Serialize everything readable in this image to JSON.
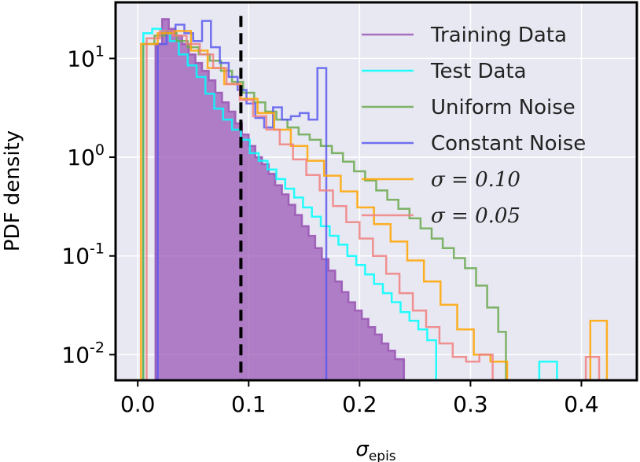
{
  "chart_data": {
    "type": "histogram",
    "xlabel": "σ",
    "xlabel_sub": "epis",
    "ylabel": "PDF density",
    "xlim": [
      -0.02,
      0.45
    ],
    "ylim": [
      0.0055,
      37
    ],
    "yscale": "log",
    "xticks": [
      0.0,
      0.1,
      0.2,
      0.3,
      0.4
    ],
    "xtick_labels": [
      "0.0",
      "0.1",
      "0.2",
      "0.3",
      "0.4"
    ],
    "yticks": [
      0.01,
      0.1,
      1,
      10
    ],
    "ytick_labels": [
      {
        "base": "10",
        "exp": "-2"
      },
      {
        "base": "10",
        "exp": "-1"
      },
      {
        "base": "10",
        "exp": "0"
      },
      {
        "base": "10",
        "exp": "1"
      }
    ],
    "background_color": "#e8e8f2",
    "grid": true,
    "legend_position": "top-right",
    "threshold_line": {
      "x": 0.093,
      "style": "dashed",
      "color": "#000000"
    },
    "series": [
      {
        "name": "Training Data",
        "color": "#9b59b6",
        "fill": true,
        "edges": [
          0.016,
          0.022,
          0.028,
          0.034,
          0.04,
          0.046,
          0.052,
          0.058,
          0.064,
          0.07,
          0.076,
          0.082,
          0.088,
          0.094,
          0.1,
          0.106,
          0.112,
          0.118,
          0.124,
          0.13,
          0.136,
          0.142,
          0.148,
          0.154,
          0.16,
          0.166,
          0.172,
          0.178,
          0.184,
          0.19,
          0.196,
          0.202,
          0.208,
          0.214,
          0.22,
          0.226,
          0.232,
          0.24
        ],
        "values": [
          14,
          25,
          20,
          17,
          14,
          11,
          9,
          7.5,
          6.0,
          4.5,
          3.6,
          2.9,
          2.2,
          1.7,
          1.3,
          1.0,
          0.85,
          0.68,
          0.52,
          0.42,
          0.33,
          0.26,
          0.2,
          0.16,
          0.12,
          0.093,
          0.071,
          0.055,
          0.043,
          0.034,
          0.028,
          0.023,
          0.019,
          0.016,
          0.013,
          0.011,
          0.009
        ]
      },
      {
        "name": "Test Data",
        "color": "#00ffff",
        "fill": false,
        "edges": [
          0.005,
          0.013,
          0.021,
          0.029,
          0.037,
          0.045,
          0.053,
          0.061,
          0.069,
          0.077,
          0.085,
          0.093,
          0.101,
          0.109,
          0.117,
          0.125,
          0.133,
          0.141,
          0.149,
          0.157,
          0.165,
          0.173,
          0.181,
          0.189,
          0.197,
          0.205,
          0.213,
          0.221,
          0.229,
          0.237,
          0.245,
          0.253,
          0.261,
          0.269,
          0.362,
          0.37,
          0.378
        ],
        "values": [
          18,
          20,
          19,
          15,
          11,
          8.5,
          6.5,
          4.4,
          3.1,
          2.4,
          1.9,
          1.5,
          1.1,
          0.92,
          0.75,
          0.6,
          0.48,
          0.39,
          0.31,
          0.25,
          0.2,
          0.16,
          0.13,
          0.1,
          0.081,
          0.065,
          0.052,
          0.042,
          0.034,
          0.027,
          0.022,
          0.018,
          0.014,
          0,
          0.0085,
          0.0085
        ]
      },
      {
        "name": "Uniform Noise",
        "color": "#6aa84f",
        "fill": false,
        "edges": [
          0.005,
          0.015,
          0.025,
          0.035,
          0.045,
          0.055,
          0.065,
          0.075,
          0.085,
          0.095,
          0.105,
          0.115,
          0.125,
          0.135,
          0.145,
          0.155,
          0.165,
          0.175,
          0.185,
          0.195,
          0.205,
          0.215,
          0.225,
          0.235,
          0.245,
          0.255,
          0.265,
          0.275,
          0.285,
          0.295,
          0.305,
          0.315,
          0.325,
          0.332
        ],
        "values": [
          14,
          17,
          18,
          15,
          13,
          11,
          9.5,
          7.5,
          5.8,
          4.5,
          3.6,
          2.9,
          2.4,
          2.0,
          1.7,
          1.5,
          1.3,
          1.1,
          0.9,
          0.72,
          0.58,
          0.46,
          0.37,
          0.3,
          0.24,
          0.19,
          0.15,
          0.12,
          0.095,
          0.075,
          0.05,
          0.03,
          0.017
        ]
      },
      {
        "name": "Constant Noise",
        "color": "#5b5bf0",
        "fill": false,
        "edges": [
          0.018,
          0.026,
          0.034,
          0.042,
          0.05,
          0.058,
          0.066,
          0.074,
          0.082,
          0.09,
          0.098,
          0.106,
          0.114,
          0.122,
          0.13,
          0.138,
          0.146,
          0.154,
          0.162,
          0.17
        ],
        "values": [
          14,
          19,
          22,
          18,
          15,
          24,
          13,
          9.0,
          6.5,
          4.8,
          3.5,
          2.5,
          2.0,
          3.2,
          2.4,
          2.6,
          2.8,
          2.4,
          8.0
        ]
      },
      {
        "name": "σ = 0.10",
        "label_math": true,
        "color": "#ffa500",
        "fill": false,
        "edges": [
          0.003,
          0.018,
          0.033,
          0.048,
          0.063,
          0.078,
          0.093,
          0.108,
          0.123,
          0.138,
          0.153,
          0.168,
          0.183,
          0.198,
          0.213,
          0.228,
          0.243,
          0.258,
          0.273,
          0.288,
          0.303,
          0.318,
          0.333,
          0.348,
          0.363,
          0.378,
          0.393,
          0.408,
          0.423
        ],
        "values": [
          14,
          18,
          19,
          12,
          8.0,
          5.5,
          3.9,
          2.8,
          1.9,
          1.3,
          0.92,
          0.65,
          0.45,
          0.31,
          0.21,
          0.14,
          0.09,
          0.055,
          0.032,
          0.018,
          0.01,
          0.0085,
          0,
          0,
          0,
          0,
          0,
          0.022
        ]
      },
      {
        "name": "σ = 0.05",
        "label_math": true,
        "color": "#f08080",
        "fill": false,
        "edges": [
          0.008,
          0.02,
          0.032,
          0.044,
          0.056,
          0.068,
          0.08,
          0.092,
          0.104,
          0.116,
          0.128,
          0.14,
          0.152,
          0.164,
          0.176,
          0.188,
          0.2,
          0.212,
          0.224,
          0.236,
          0.248,
          0.26,
          0.272,
          0.284,
          0.296,
          0.308,
          0.32,
          0.332,
          0.344,
          0.356,
          0.368,
          0.38,
          0.392,
          0.404,
          0.416
        ],
        "values": [
          16,
          19,
          17,
          14,
          11,
          8.0,
          5.5,
          3.8,
          2.6,
          1.9,
          1.35,
          0.95,
          0.66,
          0.46,
          0.32,
          0.22,
          0.15,
          0.1,
          0.066,
          0.042,
          0.028,
          0.019,
          0.013,
          0.0095,
          0.0085,
          0.01,
          0,
          0,
          0,
          0,
          0,
          0,
          0,
          0.0095
        ]
      }
    ]
  }
}
